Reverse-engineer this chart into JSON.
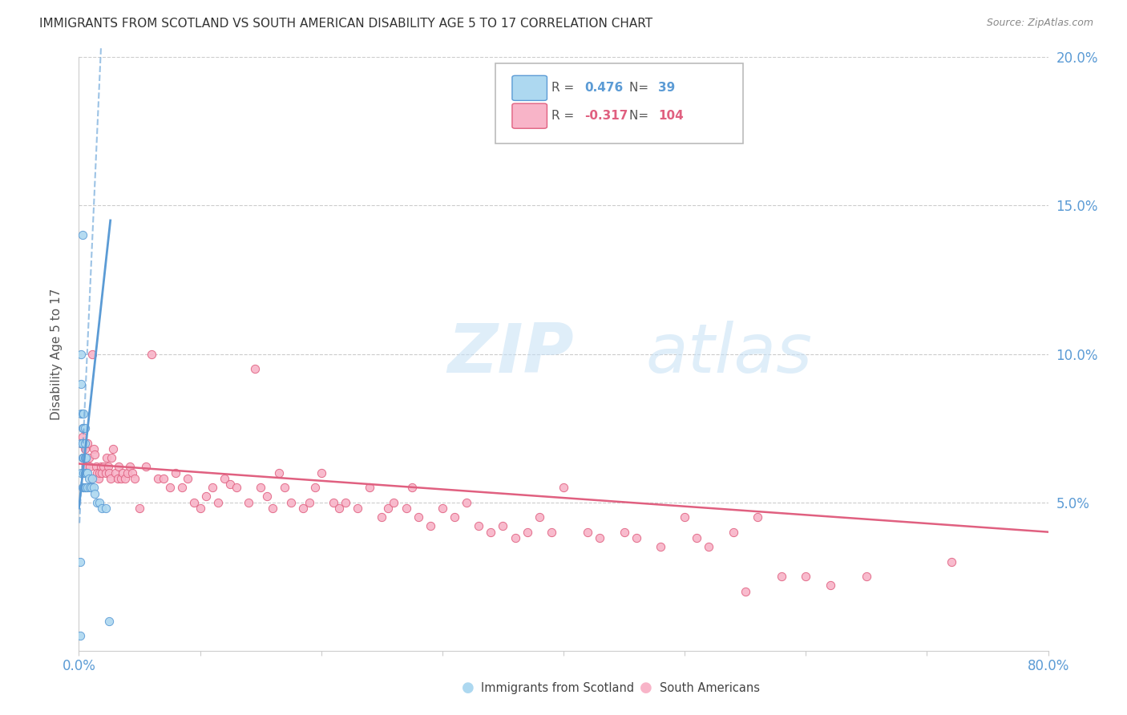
{
  "title": "IMMIGRANTS FROM SCOTLAND VS SOUTH AMERICAN DISABILITY AGE 5 TO 17 CORRELATION CHART",
  "source": "Source: ZipAtlas.com",
  "ylabel": "Disability Age 5 to 17",
  "xlim": [
    0.0,
    0.8
  ],
  "ylim": [
    0.0,
    0.2
  ],
  "scotland_r": 0.476,
  "scotland_n": 39,
  "southam_r": -0.317,
  "southam_n": 104,
  "scotland_fill": "#add8f0",
  "scotland_edge": "#5b9bd5",
  "southam_fill": "#f8b4c8",
  "southam_edge": "#e06080",
  "scotland_line_color": "#5b9bd5",
  "southam_line_color": "#e06080",
  "axis_blue": "#5b9bd5",
  "watermark_zip": "#c5e0f5",
  "watermark_atlas": "#c5e0f5",
  "background": "#ffffff",
  "grid_color": "#cccccc",
  "scotland_x": [
    0.001,
    0.001,
    0.002,
    0.002,
    0.002,
    0.002,
    0.002,
    0.003,
    0.003,
    0.003,
    0.003,
    0.003,
    0.003,
    0.004,
    0.004,
    0.004,
    0.004,
    0.004,
    0.005,
    0.005,
    0.005,
    0.005,
    0.005,
    0.006,
    0.006,
    0.006,
    0.007,
    0.007,
    0.008,
    0.009,
    0.01,
    0.011,
    0.012,
    0.013,
    0.015,
    0.017,
    0.019,
    0.022,
    0.025
  ],
  "scotland_y": [
    0.005,
    0.03,
    0.06,
    0.07,
    0.08,
    0.09,
    0.1,
    0.055,
    0.065,
    0.07,
    0.075,
    0.08,
    0.14,
    0.055,
    0.06,
    0.065,
    0.075,
    0.08,
    0.055,
    0.06,
    0.065,
    0.07,
    0.075,
    0.055,
    0.06,
    0.065,
    0.055,
    0.06,
    0.058,
    0.055,
    0.055,
    0.058,
    0.055,
    0.053,
    0.05,
    0.05,
    0.048,
    0.048,
    0.01
  ],
  "southam_x": [
    0.002,
    0.003,
    0.004,
    0.005,
    0.006,
    0.007,
    0.008,
    0.009,
    0.01,
    0.011,
    0.012,
    0.013,
    0.014,
    0.015,
    0.016,
    0.017,
    0.018,
    0.019,
    0.02,
    0.022,
    0.023,
    0.024,
    0.025,
    0.026,
    0.027,
    0.028,
    0.03,
    0.032,
    0.033,
    0.035,
    0.036,
    0.038,
    0.04,
    0.042,
    0.044,
    0.046,
    0.05,
    0.055,
    0.06,
    0.065,
    0.07,
    0.075,
    0.08,
    0.085,
    0.09,
    0.095,
    0.1,
    0.105,
    0.11,
    0.115,
    0.12,
    0.125,
    0.13,
    0.14,
    0.145,
    0.15,
    0.155,
    0.16,
    0.165,
    0.17,
    0.175,
    0.185,
    0.19,
    0.195,
    0.2,
    0.21,
    0.215,
    0.22,
    0.23,
    0.24,
    0.25,
    0.255,
    0.26,
    0.27,
    0.275,
    0.28,
    0.29,
    0.3,
    0.31,
    0.32,
    0.33,
    0.34,
    0.35,
    0.36,
    0.37,
    0.38,
    0.39,
    0.4,
    0.42,
    0.43,
    0.45,
    0.46,
    0.48,
    0.5,
    0.51,
    0.52,
    0.54,
    0.55,
    0.56,
    0.58,
    0.6,
    0.62,
    0.65,
    0.72
  ],
  "southam_y": [
    0.07,
    0.072,
    0.065,
    0.068,
    0.062,
    0.07,
    0.065,
    0.062,
    0.058,
    0.1,
    0.068,
    0.066,
    0.062,
    0.06,
    0.058,
    0.06,
    0.062,
    0.06,
    0.062,
    0.06,
    0.065,
    0.062,
    0.06,
    0.058,
    0.065,
    0.068,
    0.06,
    0.058,
    0.062,
    0.058,
    0.06,
    0.058,
    0.06,
    0.062,
    0.06,
    0.058,
    0.048,
    0.062,
    0.1,
    0.058,
    0.058,
    0.055,
    0.06,
    0.055,
    0.058,
    0.05,
    0.048,
    0.052,
    0.055,
    0.05,
    0.058,
    0.056,
    0.055,
    0.05,
    0.095,
    0.055,
    0.052,
    0.048,
    0.06,
    0.055,
    0.05,
    0.048,
    0.05,
    0.055,
    0.06,
    0.05,
    0.048,
    0.05,
    0.048,
    0.055,
    0.045,
    0.048,
    0.05,
    0.048,
    0.055,
    0.045,
    0.042,
    0.048,
    0.045,
    0.05,
    0.042,
    0.04,
    0.042,
    0.038,
    0.04,
    0.045,
    0.04,
    0.055,
    0.04,
    0.038,
    0.04,
    0.038,
    0.035,
    0.045,
    0.038,
    0.035,
    0.04,
    0.02,
    0.045,
    0.025,
    0.025,
    0.022,
    0.025,
    0.03
  ],
  "scot_line_x0": 0.0,
  "scot_line_x1": 0.026,
  "scot_line_y0": 0.048,
  "scot_line_y1": 0.145,
  "southam_line_x0": 0.0,
  "southam_line_x1": 0.8,
  "southam_line_y0": 0.063,
  "southam_line_y1": 0.04
}
